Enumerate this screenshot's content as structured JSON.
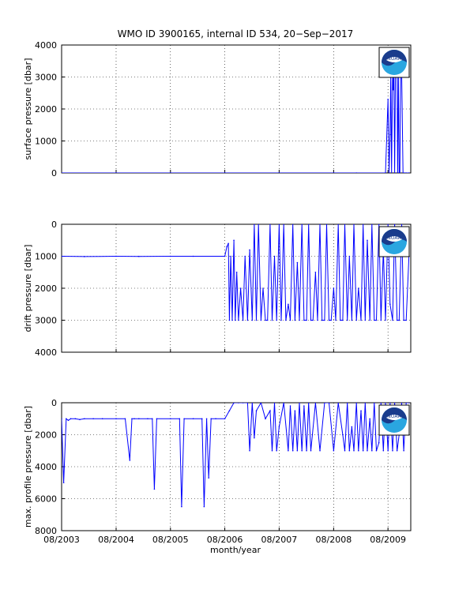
{
  "figure": {
    "title": "WMO ID 3900165, internal ID 534, 20−Sep−2017",
    "logo_text": "NOAA",
    "shared_xlabel": "month/year",
    "x_ticklabels": [
      "08/2003",
      "08/2004",
      "08/2005",
      "08/2006",
      "08/2007",
      "08/2008",
      "08/2009"
    ]
  },
  "colors": {
    "series": "#0000ff",
    "axes": "#000000",
    "grid": "#000000",
    "logo_blue": "#1a3c8c",
    "logo_light": "#2aa6e0"
  },
  "chart_data": [
    {
      "type": "line",
      "ylabel": "surface pressure [dbar]",
      "ylim": [
        0,
        4000
      ],
      "y_reversed": false,
      "yticks": [
        0,
        1000,
        2000,
        3000,
        4000
      ],
      "xlim": [
        "2003-08-01",
        "2010-01-01"
      ],
      "grid": "dotted",
      "series": [
        {
          "x": [
            "2003-08-01",
            "2004-08-01",
            "2005-08-01",
            "2006-08-01",
            "2007-08-01",
            "2008-08-01",
            "2009-01-01",
            "2009-07-15",
            "2009-08-01",
            "2009-08-08",
            "2009-08-15",
            "2009-08-20",
            "2009-08-25",
            "2009-09-01",
            "2009-09-05",
            "2009-09-10",
            "2009-09-15",
            "2009-09-20",
            "2009-09-25",
            "2009-10-01",
            "2009-10-05",
            "2009-10-10",
            "2009-10-15",
            "2009-10-20",
            "2009-10-25",
            "2009-11-01",
            "2009-11-10",
            "2009-11-20",
            "2009-12-01",
            "2009-12-20"
          ],
          "y": [
            0,
            0,
            0,
            0,
            0,
            0,
            0,
            0,
            2300,
            0,
            1200,
            3100,
            0,
            3100,
            2600,
            3100,
            0,
            3100,
            3100,
            3100,
            0,
            3100,
            0,
            0,
            3100,
            3100,
            0,
            0,
            0,
            0
          ]
        }
      ]
    },
    {
      "type": "line",
      "ylabel": "drift pressure [dbar]",
      "ylim": [
        0,
        4000
      ],
      "y_reversed": true,
      "yticks": [
        0,
        1000,
        2000,
        3000,
        4000
      ],
      "xlim": [
        "2003-08-01",
        "2010-01-01"
      ],
      "grid": "dotted",
      "series": [
        {
          "x": [
            "2003-08-01",
            "2004-01-01",
            "2004-08-01",
            "2005-01-01",
            "2005-08-01",
            "2006-01-01",
            "2006-08-01",
            "2006-08-15",
            "2006-08-25",
            "2006-09-01",
            "2006-09-10",
            "2006-09-20",
            "2006-10-01",
            "2006-10-10",
            "2006-10-20",
            "2006-11-01",
            "2006-11-15",
            "2006-12-01",
            "2006-12-15",
            "2007-01-01",
            "2007-01-15",
            "2007-02-01",
            "2007-02-15",
            "2007-03-01",
            "2007-03-15",
            "2007-04-01",
            "2007-04-15",
            "2007-05-01",
            "2007-05-15",
            "2007-06-01",
            "2007-06-15",
            "2007-07-01",
            "2007-07-15",
            "2007-08-01",
            "2007-08-15",
            "2007-09-01",
            "2007-09-15",
            "2007-10-01",
            "2007-10-15",
            "2007-11-01",
            "2007-11-15",
            "2007-12-01",
            "2007-12-15",
            "2008-01-01",
            "2008-01-15",
            "2008-02-01",
            "2008-02-15",
            "2008-03-01",
            "2008-03-15",
            "2008-04-01",
            "2008-04-15",
            "2008-05-01",
            "2008-05-15",
            "2008-06-01",
            "2008-06-15",
            "2008-07-01",
            "2008-07-15",
            "2008-08-01",
            "2008-08-15",
            "2008-09-01",
            "2008-09-15",
            "2008-10-01",
            "2008-10-15",
            "2008-11-01",
            "2008-11-15",
            "2008-12-01",
            "2008-12-15",
            "2009-01-01",
            "2009-01-15",
            "2009-02-01",
            "2009-02-15",
            "2009-03-01",
            "2009-03-15",
            "2009-04-01",
            "2009-04-15",
            "2009-05-01",
            "2009-05-15",
            "2009-06-01",
            "2009-06-15",
            "2009-07-01",
            "2009-07-15",
            "2009-08-01",
            "2009-08-15",
            "2009-09-01",
            "2009-09-15",
            "2009-10-01",
            "2009-10-15",
            "2009-11-01",
            "2009-11-15",
            "2009-12-01",
            "2009-12-20"
          ],
          "y": [
            1000,
            1010,
            1000,
            1005,
            1000,
            1000,
            1000,
            700,
            600,
            3000,
            1000,
            3000,
            500,
            3000,
            1500,
            3000,
            2000,
            3000,
            1000,
            3000,
            800,
            3000,
            0,
            3000,
            0,
            3000,
            2000,
            3000,
            3000,
            0,
            3000,
            1000,
            3000,
            0,
            3000,
            0,
            3000,
            2500,
            3000,
            0,
            3000,
            1200,
            3000,
            0,
            3000,
            3000,
            0,
            3000,
            3000,
            1500,
            3000,
            0,
            3000,
            3000,
            0,
            3000,
            3000,
            2000,
            3000,
            0,
            3000,
            3000,
            0,
            3000,
            1000,
            3000,
            0,
            3000,
            2000,
            3000,
            0,
            3000,
            500,
            3000,
            0,
            3000,
            3000,
            0,
            3000,
            800,
            3000,
            0,
            2500,
            3000,
            0,
            3000,
            3000,
            0,
            3000,
            3000,
            1000
          ]
        }
      ]
    },
    {
      "type": "line",
      "ylabel": "max. profile pressure [dbar]",
      "ylim": [
        0,
        8000
      ],
      "y_reversed": true,
      "yticks": [
        0,
        2000,
        4000,
        6000,
        8000
      ],
      "xlim": [
        "2003-08-01",
        "2010-01-01"
      ],
      "grid": "dotted",
      "series": [
        {
          "x": [
            "2003-08-01",
            "2003-08-15",
            "2003-09-01",
            "2003-09-15",
            "2003-10-01",
            "2003-11-01",
            "2003-12-01",
            "2004-01-01",
            "2004-03-01",
            "2004-05-01",
            "2004-08-01",
            "2004-10-01",
            "2004-11-01",
            "2004-11-15",
            "2004-12-01",
            "2005-01-01",
            "2005-03-01",
            "2005-04-01",
            "2005-04-15",
            "2005-05-01",
            "2005-08-01",
            "2005-10-01",
            "2005-10-15",
            "2005-11-01",
            "2006-01-01",
            "2006-03-01",
            "2006-03-15",
            "2006-04-01",
            "2006-04-15",
            "2006-05-01",
            "2006-06-01",
            "2006-08-01",
            "2006-09-01",
            "2006-10-01",
            "2006-11-01",
            "2006-12-01",
            "2007-01-01",
            "2007-01-15",
            "2007-02-01",
            "2007-02-15",
            "2007-03-01",
            "2007-04-01",
            "2007-05-01",
            "2007-06-01",
            "2007-06-15",
            "2007-07-01",
            "2007-07-15",
            "2007-08-01",
            "2007-09-01",
            "2007-10-01",
            "2007-10-15",
            "2007-11-01",
            "2007-11-15",
            "2007-12-01",
            "2007-12-15",
            "2008-01-01",
            "2008-01-15",
            "2008-02-01",
            "2008-02-15",
            "2008-03-01",
            "2008-04-01",
            "2008-05-01",
            "2008-06-01",
            "2008-07-01",
            "2008-08-01",
            "2008-09-01",
            "2008-10-01",
            "2008-10-15",
            "2008-11-01",
            "2008-11-15",
            "2008-12-01",
            "2008-12-15",
            "2009-01-01",
            "2009-01-15",
            "2009-02-01",
            "2009-02-15",
            "2009-03-01",
            "2009-03-15",
            "2009-04-01",
            "2009-04-15",
            "2009-05-01",
            "2009-05-15",
            "2009-06-01",
            "2009-06-15",
            "2009-07-01",
            "2009-07-15",
            "2009-08-01",
            "2009-08-15",
            "2009-09-01",
            "2009-09-15",
            "2009-10-01",
            "2009-10-15",
            "2009-11-01",
            "2009-11-15",
            "2009-12-01",
            "2009-12-20"
          ],
          "y": [
            1000,
            5000,
            1000,
            1100,
            1000,
            1000,
            1050,
            1000,
            1000,
            1000,
            1000,
            1000,
            3600,
            1000,
            1000,
            1000,
            1000,
            1000,
            5400,
            1000,
            1000,
            1000,
            6500,
            1000,
            1000,
            1000,
            6500,
            1000,
            4700,
            1000,
            1000,
            1000,
            500,
            0,
            0,
            0,
            0,
            3000,
            0,
            2200,
            500,
            0,
            1000,
            500,
            3000,
            0,
            3000,
            1500,
            0,
            3000,
            200,
            3000,
            500,
            3000,
            0,
            3000,
            200,
            3000,
            0,
            3000,
            0,
            3000,
            0,
            0,
            3000,
            0,
            2000,
            3000,
            0,
            3000,
            1500,
            3000,
            0,
            3000,
            500,
            3000,
            0,
            3000,
            1000,
            3000,
            0,
            3000,
            2500,
            0,
            3000,
            0,
            3000,
            0,
            3000,
            0,
            3000,
            2000,
            0,
            3000,
            0,
            0
          ]
        }
      ]
    }
  ]
}
